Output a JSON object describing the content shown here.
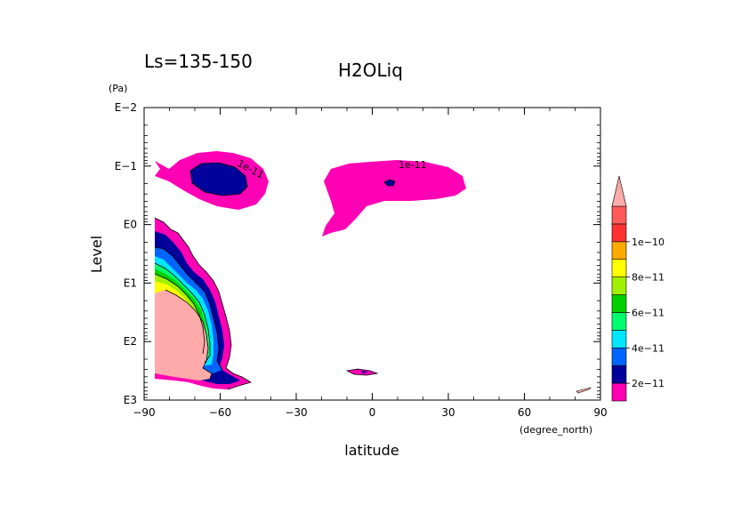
{
  "chart_data": {
    "type": "contour",
    "title": "H2OLiq",
    "subtitle": "Ls=135-150",
    "xlabel": "latitude",
    "x_units": "(degree_north)",
    "ylabel": "Level",
    "y_units": "(Pa)",
    "x_ticks": [
      -90,
      -60,
      -30,
      0,
      30,
      60,
      90
    ],
    "x_tick_labels": [
      "−90",
      "−60",
      "−30",
      "0",
      "30",
      "60",
      "90"
    ],
    "xlim": [
      -90,
      90
    ],
    "y_scale": "log",
    "ylim": [
      0.01,
      1000
    ],
    "y_ticks": [
      0.01,
      0.1,
      1,
      10,
      100,
      1000
    ],
    "y_tick_labels": [
      "E−2",
      "E−1",
      "E0",
      "E1",
      "E2",
      "E3"
    ],
    "y_inverted": true,
    "contour_labels": [
      "1e-11",
      "1e-11"
    ],
    "colorbar": {
      "levels": [
        1e-11,
        2e-11,
        3e-11,
        4e-11,
        5e-11,
        6e-11,
        7e-11,
        8e-11,
        9e-11,
        1e-10,
        1.1e-10
      ],
      "colors": [
        "#ff00b4",
        "#00009b",
        "#0064ff",
        "#00e6ff",
        "#00ff6e",
        "#00d200",
        "#a0f000",
        "#ffff00",
        "#ffaa00",
        "#ff3232",
        "#ff5a5a",
        "#ffaaaa"
      ],
      "tick_labels": [
        "2e−11",
        "4e−11",
        "6e−11",
        "8e−11",
        "1e−10"
      ]
    }
  }
}
